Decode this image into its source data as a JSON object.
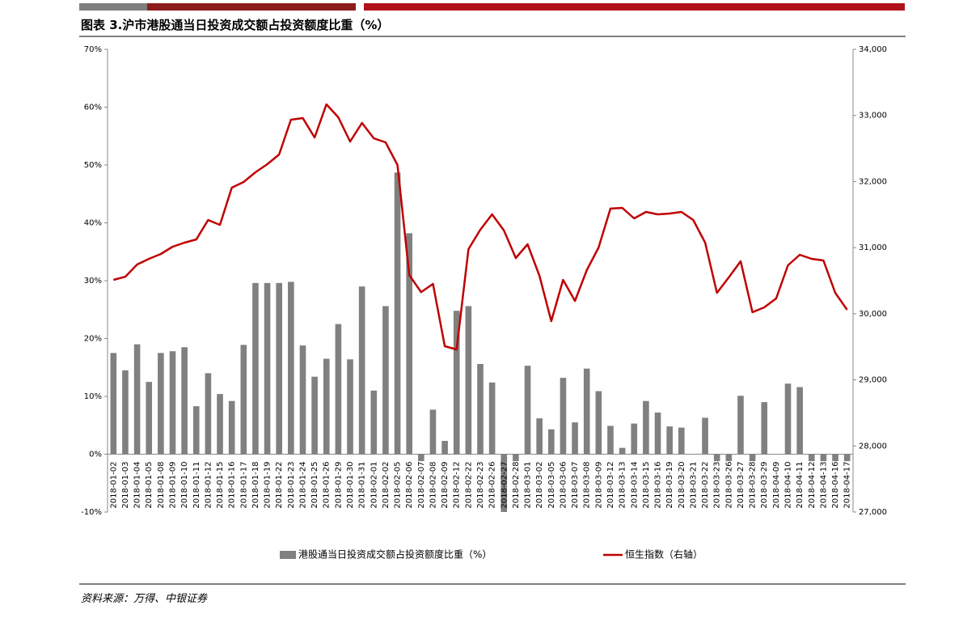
{
  "chart_data": {
    "type": "bar-line",
    "title": "图表 3.沪市港股通当日投资成交额占投资额度比重（%）",
    "source": "资料来源：万得、中银证券",
    "categories": [
      "2018-01-02",
      "2018-01-03",
      "2018-01-04",
      "2018-01-05",
      "2018-01-08",
      "2018-01-09",
      "2018-01-10",
      "2018-01-11",
      "2018-01-12",
      "2018-01-15",
      "2018-01-16",
      "2018-01-17",
      "2018-01-18",
      "2018-01-19",
      "2018-01-22",
      "2018-01-23",
      "2018-01-24",
      "2018-01-25",
      "2018-01-26",
      "2018-01-29",
      "2018-01-30",
      "2018-01-31",
      "2018-02-01",
      "2018-02-02",
      "2018-02-05",
      "2018-02-06",
      "2018-02-07",
      "2018-02-08",
      "2018-02-09",
      "2018-02-12",
      "2018-02-22",
      "2018-02-23",
      "2018-02-26",
      "2018-02-27",
      "2018-02-28",
      "2018-03-01",
      "2018-03-02",
      "2018-03-05",
      "2018-03-06",
      "2018-03-07",
      "2018-03-08",
      "2018-03-09",
      "2018-03-12",
      "2018-03-13",
      "2018-03-14",
      "2018-03-15",
      "2018-03-16",
      "2018-03-19",
      "2018-03-20",
      "2018-03-21",
      "2018-03-22",
      "2018-03-23",
      "2018-03-26",
      "2018-03-27",
      "2018-03-28",
      "2018-03-29",
      "2018-04-09",
      "2018-04-10",
      "2018-04-11",
      "2018-04-12",
      "2018-04-13",
      "2018-04-16",
      "2018-04-17"
    ],
    "series": [
      {
        "name": "港股通当日投资成交额占投资额度比重（%）",
        "type": "bar",
        "color": "#808080",
        "values": [
          17.5,
          14.5,
          19,
          12.5,
          17.5,
          17.8,
          18.5,
          8.3,
          14,
          10.4,
          9.2,
          18.9,
          29.6,
          29.6,
          29.6,
          29.8,
          18.8,
          13.4,
          16.5,
          22.5,
          16.4,
          29,
          11,
          25.6,
          48.7,
          38.2,
          -1.2,
          7.7,
          2.3,
          24.8,
          25.6,
          15.6,
          12.4,
          -10,
          -1.2,
          15.3,
          6.2,
          4.3,
          13.2,
          5.5,
          14.8,
          10.9,
          4.9,
          1.1,
          5.3,
          9.2,
          7.2,
          4.8,
          4.6,
          0,
          6.3,
          -1.2,
          -1.2,
          10.1,
          -1.2,
          9,
          0,
          12.2,
          11.6,
          -1.2,
          -1.2,
          -1.2,
          -1.2
        ]
      },
      {
        "name": "恒生指数（右轴）",
        "type": "line",
        "axis": "y2",
        "color": "#c00000",
        "values": [
          30512,
          30560,
          30745,
          30830,
          30904,
          31014,
          31075,
          31124,
          31418,
          31344,
          31907,
          31993,
          32140,
          32262,
          32409,
          32935,
          32960,
          32666,
          33168,
          32972,
          32605,
          32886,
          32654,
          32593,
          32250,
          30585,
          30328,
          30451,
          29509,
          29460,
          30977,
          31271,
          31503,
          31259,
          30843,
          31051,
          30573,
          29888,
          30512,
          30194,
          30659,
          31002,
          31590,
          31601,
          31442,
          31540,
          31503,
          31516,
          31540,
          31418,
          31075,
          30316,
          30549,
          30794,
          30023,
          30096,
          30231,
          30732,
          30891,
          30830,
          30806,
          30316,
          30059
        ]
      }
    ],
    "ylim": [
      -10,
      70
    ],
    "yticks": [
      {
        "value": -10,
        "label": "-10%"
      },
      {
        "value": 0,
        "label": "0%"
      },
      {
        "value": 10,
        "label": "10%"
      },
      {
        "value": 20,
        "label": "20%"
      },
      {
        "value": 30,
        "label": "30%"
      },
      {
        "value": 40,
        "label": "40%"
      },
      {
        "value": 50,
        "label": "50%"
      },
      {
        "value": 60,
        "label": "60%"
      },
      {
        "value": 70,
        "label": "70%"
      }
    ],
    "y2lim": [
      27000,
      34000
    ],
    "y2ticks": [
      {
        "value": 27000,
        "label": "27,000"
      },
      {
        "value": 28000,
        "label": "28,000"
      },
      {
        "value": 29000,
        "label": "29,000"
      },
      {
        "value": 30000,
        "label": "30,000"
      },
      {
        "value": 31000,
        "label": "31,000"
      },
      {
        "value": 32000,
        "label": "32,000"
      },
      {
        "value": 33000,
        "label": "33,000"
      },
      {
        "value": 34000,
        "label": "34,000"
      }
    ],
    "grid": false,
    "legend": "bottom"
  }
}
